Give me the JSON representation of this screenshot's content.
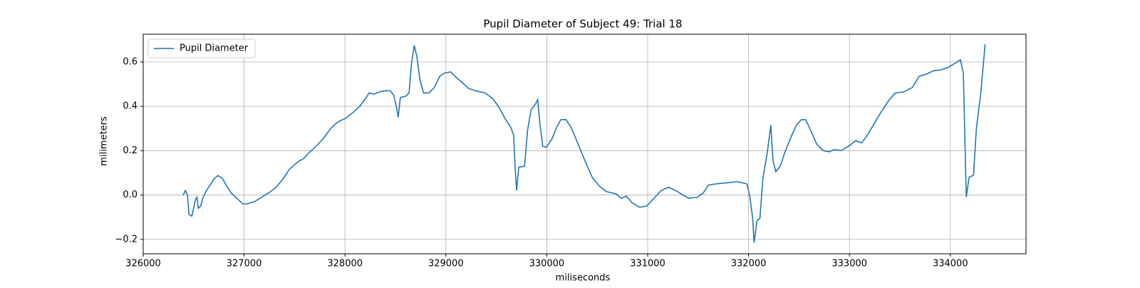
{
  "chart_data": {
    "type": "line",
    "title": "Pupil Diameter of Subject 49: Trial 18",
    "xlabel": "miliseconds",
    "ylabel": "milimeters",
    "x": [
      326396,
      326418,
      326439,
      326454,
      326482,
      326518,
      326532,
      326547,
      326569,
      326590,
      326626,
      326670,
      326706,
      326742,
      326785,
      326828,
      326871,
      326929,
      326986,
      327030,
      327102,
      327174,
      327246,
      327318,
      327390,
      327447,
      327534,
      327591,
      327642,
      327714,
      327786,
      327858,
      327930,
      328002,
      328074,
      328146,
      328196,
      328239,
      328290,
      328340,
      328398,
      328448,
      328484,
      328513,
      328527,
      328549,
      328600,
      328635,
      328657,
      328686,
      328714,
      328743,
      328779,
      328830,
      328887,
      328938,
      328988,
      329046,
      329103,
      329154,
      329226,
      329298,
      329391,
      329463,
      329521,
      329586,
      329643,
      329672,
      329686,
      329701,
      329722,
      329780,
      329809,
      329845,
      329888,
      329910,
      329932,
      329960,
      329996,
      330054,
      330097,
      330140,
      330190,
      330241,
      330306,
      330378,
      330450,
      330522,
      330594,
      330687,
      330738,
      330788,
      330846,
      330918,
      330990,
      331062,
      331134,
      331206,
      331278,
      331350,
      331407,
      331494,
      331552,
      331602,
      331674,
      331782,
      331890,
      331984,
      332012,
      332041,
      332055,
      332084,
      332113,
      332142,
      332185,
      332221,
      332242,
      332271,
      332314,
      332358,
      332415,
      332473,
      332523,
      332566,
      332617,
      332675,
      332740,
      332804,
      332847,
      332919,
      332991,
      333063,
      333121,
      333178,
      333236,
      333308,
      333380,
      333452,
      333538,
      333625,
      333690,
      333762,
      333834,
      333913,
      333978,
      334050,
      334100,
      334129,
      334158,
      334186,
      334230,
      334258,
      334302,
      334345
    ],
    "series": [
      {
        "name": "Pupil Diameter",
        "color": "#1f77b4",
        "values": [
          0.0,
          0.02,
          0.0,
          -0.088,
          -0.095,
          -0.02,
          -0.01,
          -0.06,
          -0.05,
          -0.015,
          0.02,
          0.05,
          0.075,
          0.088,
          0.075,
          0.04,
          0.01,
          -0.015,
          -0.04,
          -0.04,
          -0.03,
          -0.01,
          0.01,
          0.035,
          0.075,
          0.115,
          0.15,
          0.165,
          0.19,
          0.22,
          0.255,
          0.3,
          0.33,
          0.345,
          0.37,
          0.4,
          0.43,
          0.46,
          0.455,
          0.465,
          0.47,
          0.47,
          0.45,
          0.39,
          0.35,
          0.44,
          0.445,
          0.46,
          0.585,
          0.675,
          0.62,
          0.52,
          0.46,
          0.46,
          0.485,
          0.535,
          0.55,
          0.555,
          0.53,
          0.51,
          0.48,
          0.47,
          0.46,
          0.435,
          0.4,
          0.345,
          0.305,
          0.27,
          0.125,
          0.02,
          0.125,
          0.13,
          0.29,
          0.385,
          0.41,
          0.43,
          0.32,
          0.22,
          0.215,
          0.255,
          0.305,
          0.34,
          0.34,
          0.305,
          0.235,
          0.155,
          0.08,
          0.04,
          0.015,
          0.005,
          -0.015,
          -0.005,
          -0.035,
          -0.055,
          -0.05,
          -0.015,
          0.02,
          0.035,
          0.02,
          0.0,
          -0.015,
          -0.01,
          0.01,
          0.045,
          0.05,
          0.055,
          0.06,
          0.05,
          -0.005,
          -0.105,
          -0.215,
          -0.115,
          -0.105,
          0.075,
          0.19,
          0.315,
          0.155,
          0.105,
          0.13,
          0.19,
          0.255,
          0.315,
          0.34,
          0.34,
          0.29,
          0.23,
          0.2,
          0.195,
          0.205,
          0.2,
          0.22,
          0.245,
          0.235,
          0.27,
          0.315,
          0.37,
          0.42,
          0.46,
          0.465,
          0.485,
          0.535,
          0.545,
          0.56,
          0.565,
          0.575,
          0.595,
          0.61,
          0.55,
          -0.01,
          0.08,
          0.09,
          0.3,
          0.46,
          0.68
        ]
      }
    ],
    "xlim": [
      326000,
      334750
    ],
    "ylim": [
      -0.265,
      0.725
    ],
    "xticks": [
      326000,
      327000,
      328000,
      329000,
      330000,
      331000,
      332000,
      333000,
      334000
    ],
    "yticks": [
      {
        "value": -0.2,
        "label": "−0.2"
      },
      {
        "value": 0,
        "label": "0.0"
      },
      0.2,
      0.4,
      0.6
    ],
    "grid": true,
    "legend": "upper left"
  }
}
